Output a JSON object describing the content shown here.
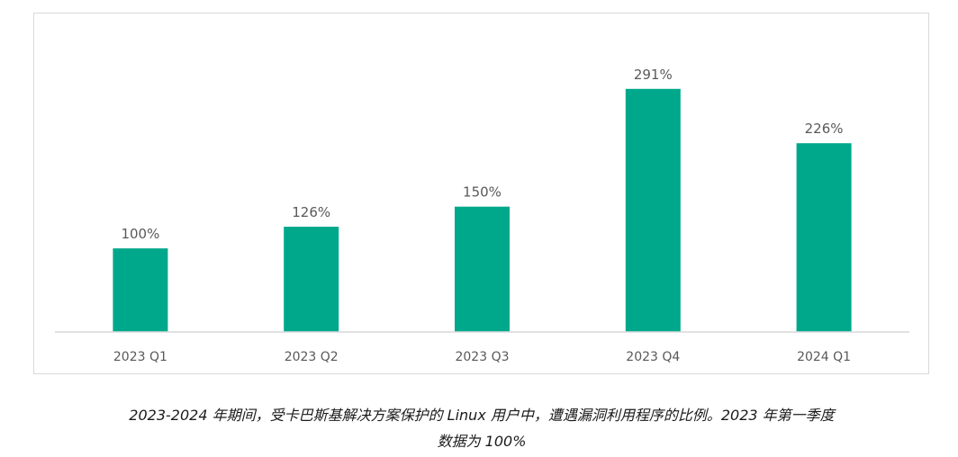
{
  "chart_data": {
    "type": "bar",
    "categories": [
      "2023 Q1",
      "2023 Q2",
      "2023 Q3",
      "2023 Q4",
      "2024 Q1"
    ],
    "values": [
      100,
      126,
      150,
      291,
      226
    ],
    "data_labels": [
      "100%",
      "126%",
      "150%",
      "291%",
      "226%"
    ],
    "value_unit": "%",
    "ylim": [
      0,
      320
    ],
    "grid": false,
    "legend": "none",
    "bar_color": "#00a88b",
    "axis_color": "#d9d9d9",
    "label_color": "#595959"
  },
  "caption": {
    "line1": "2023-2024 年期间，受卡巴斯基解决方案保护的 Linux 用户中，遭遇漏洞利用程序的比例。2023 年第一季度",
    "line2": "数据为 100%"
  }
}
